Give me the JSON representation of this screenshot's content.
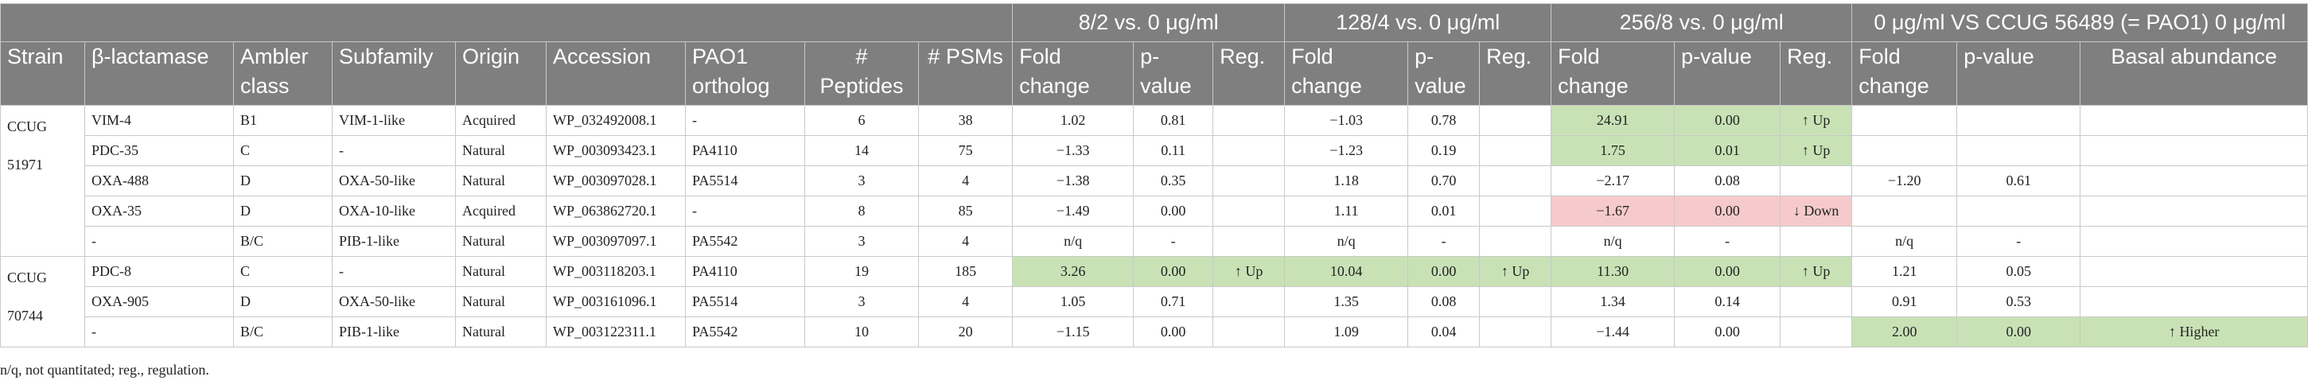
{
  "header": {
    "groups": [
      "8/2 vs. 0 μg/ml",
      "128/4 vs. 0 μg/ml",
      "256/8 vs. 0 μg/ml",
      "0 μg/ml VS CCUG 56489 (= PAO1) 0 μg/ml"
    ],
    "columns": {
      "strain": "Strain",
      "blactamase": "β-lactamase",
      "ambler": "Ambler class",
      "subfamily": "Subfamily",
      "origin": "Origin",
      "accession": "Accession",
      "pao1": "PAO1 ortholog",
      "peptides": "# Peptides",
      "psms": "# PSMs",
      "fold_change": "Fold change",
      "p_value": "p-value",
      "reg": "Reg.",
      "basal": "Basal abundance"
    }
  },
  "rows": [
    {
      "strain": "CCUG 51971",
      "bl": "VIM-4",
      "amb": "B1",
      "sub": "VIM-1-like",
      "orig": "Acquired",
      "acc": "WP_032492008.1",
      "pao": "-",
      "pep": "6",
      "psm": "38",
      "fc1": "1.02",
      "p1": "0.81",
      "r1": "",
      "fc2": "−1.03",
      "p2": "0.78",
      "r2": "",
      "fc3": "24.91",
      "p3": "0.00",
      "r3": "↑ Up",
      "fc4": "",
      "p4": "",
      "ba": ""
    },
    {
      "bl": "PDC-35",
      "amb": "C",
      "sub": "-",
      "orig": "Natural",
      "acc": "WP_003093423.1",
      "pao": "PA4110",
      "pep": "14",
      "psm": "75",
      "fc1": "−1.33",
      "p1": "0.11",
      "r1": "",
      "fc2": "−1.23",
      "p2": "0.19",
      "r2": "",
      "fc3": "1.75",
      "p3": "0.01",
      "r3": "↑ Up",
      "fc4": "",
      "p4": "",
      "ba": ""
    },
    {
      "bl": "OXA-488",
      "amb": "D",
      "sub": "OXA-50-like",
      "orig": "Natural",
      "acc": "WP_003097028.1",
      "pao": "PA5514",
      "pep": "3",
      "psm": "4",
      "fc1": "−1.38",
      "p1": "0.35",
      "r1": "",
      "fc2": "1.18",
      "p2": "0.70",
      "r2": "",
      "fc3": "−2.17",
      "p3": "0.08",
      "r3": "",
      "fc4": "−1.20",
      "p4": "0.61",
      "ba": ""
    },
    {
      "bl": "OXA-35",
      "amb": "D",
      "sub": "OXA-10-like",
      "orig": "Acquired",
      "acc": "WP_063862720.1",
      "pao": "-",
      "pep": "8",
      "psm": "85",
      "fc1": "−1.49",
      "p1": "0.00",
      "r1": "",
      "fc2": "1.11",
      "p2": "0.01",
      "r2": "",
      "fc3": "−1.67",
      "p3": "0.00",
      "r3": "↓ Down",
      "fc4": "",
      "p4": "",
      "ba": ""
    },
    {
      "bl": "-",
      "amb": "B/C",
      "sub": "PIB-1-like",
      "orig": "Natural",
      "acc": "WP_003097097.1",
      "pao": "PA5542",
      "pep": "3",
      "psm": "4",
      "fc1": "n/q",
      "p1": "-",
      "r1": "",
      "fc2": "n/q",
      "p2": "-",
      "r2": "",
      "fc3": "n/q",
      "p3": "-",
      "r3": "",
      "fc4": "n/q",
      "p4": "-",
      "ba": ""
    },
    {
      "strain": "CCUG 70744",
      "bl": "PDC-8",
      "amb": "C",
      "sub": "-",
      "orig": "Natural",
      "acc": "WP_003118203.1",
      "pao": "PA4110",
      "pep": "19",
      "psm": "185",
      "fc1": "3.26",
      "p1": "0.00",
      "r1": "↑ Up",
      "fc2": "10.04",
      "p2": "0.00",
      "r2": "↑ Up",
      "fc3": "11.30",
      "p3": "0.00",
      "r3": "↑ Up",
      "fc4": "1.21",
      "p4": "0.05",
      "ba": ""
    },
    {
      "bl": "OXA-905",
      "amb": "D",
      "sub": "OXA-50-like",
      "orig": "Natural",
      "acc": "WP_003161096.1",
      "pao": "PA5514",
      "pep": "3",
      "psm": "4",
      "fc1": "1.05",
      "p1": "0.71",
      "r1": "",
      "fc2": "1.35",
      "p2": "0.08",
      "r2": "",
      "fc3": "1.34",
      "p3": "0.14",
      "r3": "",
      "fc4": "0.91",
      "p4": "0.53",
      "ba": ""
    },
    {
      "bl": "-",
      "amb": "B/C",
      "sub": "PIB-1-like",
      "orig": "Natural",
      "acc": "WP_003122311.1",
      "pao": "PA5542",
      "pep": "10",
      "psm": "20",
      "fc1": "−1.15",
      "p1": "0.00",
      "r1": "",
      "fc2": "1.09",
      "p2": "0.04",
      "r2": "",
      "fc3": "−1.44",
      "p3": "0.00",
      "r3": "",
      "fc4": "2.00",
      "p4": "0.00",
      "ba": "↑ Higher"
    }
  ],
  "highlight_colors": {
    "up": "#c8e2b6",
    "down": "#f6caca"
  },
  "footnote": "n/q, not quantitated; reg., regulation."
}
